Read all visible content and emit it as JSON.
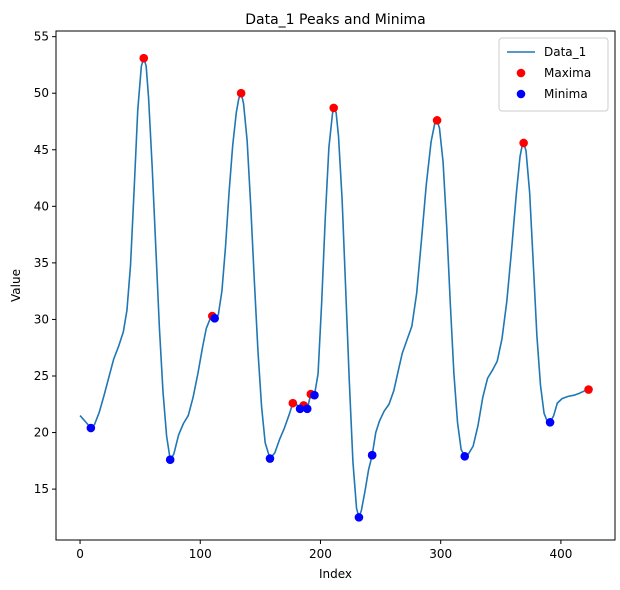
{
  "chart_data": {
    "type": "line",
    "title": "Data_1 Peaks and Minima",
    "xlabel": "Index",
    "ylabel": "Value",
    "xlim": [
      -20,
      445
    ],
    "ylim": [
      10.5,
      55.5
    ],
    "xticks": [
      0,
      100,
      200,
      300,
      400
    ],
    "yticks": [
      15,
      20,
      25,
      30,
      35,
      40,
      45,
      50,
      55
    ],
    "grid": false,
    "legend_position": "top-right",
    "series": [
      {
        "name": "Data_1",
        "kind": "line",
        "color": "#1f77b4",
        "points": [
          [
            0,
            21.5
          ],
          [
            5,
            20.9
          ],
          [
            9,
            20.4
          ],
          [
            12,
            20.7
          ],
          [
            16,
            21.8
          ],
          [
            20,
            23.3
          ],
          [
            25,
            25.3
          ],
          [
            28,
            26.5
          ],
          [
            32,
            27.6
          ],
          [
            36,
            28.9
          ],
          [
            39,
            30.8
          ],
          [
            42,
            34.8
          ],
          [
            45,
            41.5
          ],
          [
            48,
            48.5
          ],
          [
            51,
            52.4
          ],
          [
            53,
            53.1
          ],
          [
            55,
            52.4
          ],
          [
            57,
            49.6
          ],
          [
            60,
            43.5
          ],
          [
            63,
            36.4
          ],
          [
            66,
            29.3
          ],
          [
            69,
            23.6
          ],
          [
            72,
            19.7
          ],
          [
            75,
            17.6
          ],
          [
            78,
            18.1
          ],
          [
            82,
            19.8
          ],
          [
            86,
            20.8
          ],
          [
            90,
            21.5
          ],
          [
            94,
            23.1
          ],
          [
            98,
            25.2
          ],
          [
            102,
            27.6
          ],
          [
            105,
            29.2
          ],
          [
            108,
            30.0
          ],
          [
            110,
            30.3
          ],
          [
            112,
            30.1
          ],
          [
            115,
            30.4
          ],
          [
            118,
            32.5
          ],
          [
            121,
            36.4
          ],
          [
            124,
            41.3
          ],
          [
            127,
            45.4
          ],
          [
            130,
            48.3
          ],
          [
            132,
            49.5
          ],
          [
            134,
            50.0
          ],
          [
            136,
            49.1
          ],
          [
            139,
            45.8
          ],
          [
            142,
            40.0
          ],
          [
            145,
            33.4
          ],
          [
            148,
            27.2
          ],
          [
            151,
            22.3
          ],
          [
            154,
            19.1
          ],
          [
            158,
            17.7
          ],
          [
            162,
            18.2
          ],
          [
            166,
            19.4
          ],
          [
            170,
            20.4
          ],
          [
            174,
            21.6
          ],
          [
            177,
            22.6
          ],
          [
            180,
            22.5
          ],
          [
            183,
            22.1
          ],
          [
            186,
            22.4
          ],
          [
            189,
            22.1
          ],
          [
            192,
            23.4
          ],
          [
            195,
            23.3
          ],
          [
            198,
            25.2
          ],
          [
            201,
            31.5
          ],
          [
            204,
            39.0
          ],
          [
            207,
            45.2
          ],
          [
            210,
            48.2
          ],
          [
            211,
            48.7
          ],
          [
            213,
            48.3
          ],
          [
            215,
            46.2
          ],
          [
            218,
            40.6
          ],
          [
            221,
            32.6
          ],
          [
            224,
            24.5
          ],
          [
            227,
            17.4
          ],
          [
            230,
            13.3
          ],
          [
            232,
            12.5
          ],
          [
            234,
            13.1
          ],
          [
            237,
            14.8
          ],
          [
            240,
            16.7
          ],
          [
            243,
            18.0
          ],
          [
            246,
            20.0
          ],
          [
            249,
            21.0
          ],
          [
            253,
            21.9
          ],
          [
            257,
            22.5
          ],
          [
            261,
            23.7
          ],
          [
            265,
            25.6
          ],
          [
            268,
            27.0
          ],
          [
            272,
            28.2
          ],
          [
            276,
            29.4
          ],
          [
            280,
            32.3
          ],
          [
            284,
            37.0
          ],
          [
            288,
            41.9
          ],
          [
            292,
            45.7
          ],
          [
            295,
            47.3
          ],
          [
            297,
            47.6
          ],
          [
            299,
            46.9
          ],
          [
            302,
            43.9
          ],
          [
            305,
            38.2
          ],
          [
            308,
            31.4
          ],
          [
            311,
            25.2
          ],
          [
            314,
            20.9
          ],
          [
            317,
            18.5
          ],
          [
            320,
            17.9
          ],
          [
            323,
            18.1
          ],
          [
            327,
            18.8
          ],
          [
            331,
            20.6
          ],
          [
            335,
            23.1
          ],
          [
            339,
            24.8
          ],
          [
            343,
            25.5
          ],
          [
            347,
            26.3
          ],
          [
            351,
            28.3
          ],
          [
            355,
            31.6
          ],
          [
            359,
            36.2
          ],
          [
            363,
            41.2
          ],
          [
            366,
            44.4
          ],
          [
            368,
            45.5
          ],
          [
            369,
            45.6
          ],
          [
            371,
            44.9
          ],
          [
            374,
            41.2
          ],
          [
            377,
            35.0
          ],
          [
            380,
            28.6
          ],
          [
            383,
            24.2
          ],
          [
            386,
            21.7
          ],
          [
            389,
            20.9
          ],
          [
            391,
            20.9
          ],
          [
            394,
            21.5
          ],
          [
            397,
            22.6
          ],
          [
            401,
            23.0
          ],
          [
            406,
            23.2
          ],
          [
            411,
            23.3
          ],
          [
            416,
            23.5
          ],
          [
            420,
            23.7
          ],
          [
            423,
            23.8
          ]
        ]
      },
      {
        "name": "Maxima",
        "kind": "scatter",
        "color": "#ff0000",
        "points": [
          [
            53,
            53.1
          ],
          [
            110,
            30.3
          ],
          [
            134,
            50.0
          ],
          [
            177,
            22.6
          ],
          [
            186,
            22.4
          ],
          [
            192,
            23.4
          ],
          [
            211,
            48.7
          ],
          [
            243,
            18.0
          ],
          [
            297,
            47.6
          ],
          [
            369,
            45.6
          ],
          [
            423,
            23.8
          ]
        ]
      },
      {
        "name": "Minima",
        "kind": "scatter",
        "color": "#0000ff",
        "points": [
          [
            9,
            20.4
          ],
          [
            75,
            17.6
          ],
          [
            112,
            30.1
          ],
          [
            158,
            17.7
          ],
          [
            183,
            22.1
          ],
          [
            189,
            22.1
          ],
          [
            195,
            23.3
          ],
          [
            232,
            12.5
          ],
          [
            243,
            18.0
          ],
          [
            320,
            17.9
          ],
          [
            391,
            20.9
          ]
        ]
      }
    ]
  }
}
